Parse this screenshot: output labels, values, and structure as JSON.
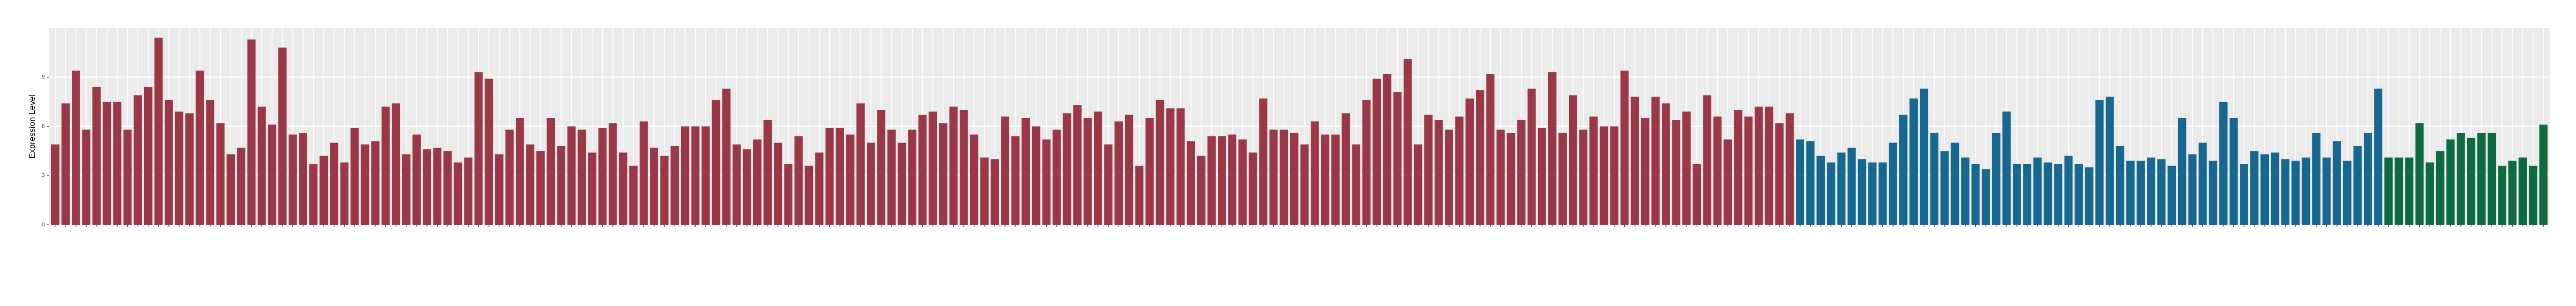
{
  "chart_data": {
    "type": "bar",
    "y_label": "Expression Level",
    "ylim": [
      0,
      12
    ],
    "yticks": [
      0,
      3,
      6,
      9
    ],
    "grid": true,
    "series": [
      {
        "color": "#9a3848",
        "values": [
          4.9,
          7.4,
          9.4,
          5.8,
          8.4,
          7.5,
          7.5,
          5.8,
          7.9,
          8.4,
          11.4,
          7.6,
          6.9,
          6.8,
          9.4,
          7.6,
          6.2,
          4.3,
          4.7,
          11.3,
          7.2,
          6.1,
          10.8,
          5.5,
          5.6,
          3.7,
          4.2,
          5.0,
          3.8,
          5.9,
          4.9,
          5.1,
          7.2,
          7.4,
          4.3,
          5.5,
          4.6,
          4.7,
          4.5,
          3.8,
          4.1,
          9.3,
          8.9,
          4.3,
          5.8,
          6.5,
          4.9,
          4.5,
          6.5,
          4.8,
          6.0,
          5.8,
          4.4,
          5.9,
          6.2,
          4.4,
          3.6,
          6.3,
          4.7,
          4.2,
          4.8,
          6.0,
          6.0,
          6.0,
          7.6,
          8.3,
          4.9,
          4.6,
          5.2,
          6.4,
          5.0,
          3.7,
          5.4,
          3.6,
          4.4,
          5.9,
          5.9,
          5.5,
          7.4,
          5.0,
          7.0,
          5.8,
          5.0,
          5.8,
          6.7,
          6.9,
          6.2,
          7.2,
          7.0,
          5.5,
          4.1,
          4.0,
          6.6,
          5.4,
          6.5,
          6.0,
          5.2,
          5.8,
          6.8,
          7.3,
          6.5,
          6.9,
          4.9,
          6.3,
          6.7,
          3.6,
          6.5,
          7.6,
          7.1,
          7.1,
          5.1,
          4.2,
          5.4,
          5.4,
          5.5,
          5.2,
          4.4,
          7.7,
          5.8,
          5.8,
          5.6,
          4.9,
          6.3,
          5.5,
          5.5,
          6.8,
          4.9,
          7.6,
          8.9,
          9.2,
          8.1,
          10.1,
          4.9,
          6.7,
          6.4,
          5.8,
          6.6,
          7.7,
          8.2,
          9.2,
          5.8,
          5.6,
          6.4,
          8.3,
          5.9,
          9.3,
          5.6,
          7.9,
          5.8,
          6.6,
          6.0,
          6.0,
          9.4,
          7.8,
          6.5,
          7.8,
          7.4,
          6.4,
          6.9,
          3.7,
          7.9,
          6.6,
          5.2,
          7.0,
          6.6,
          7.2,
          7.2,
          6.2,
          6.8
        ]
      },
      {
        "color": "#176891",
        "values": [
          5.2,
          5.1,
          4.2,
          3.8,
          4.4,
          4.7,
          4.0,
          3.8,
          3.8,
          5.0,
          6.7,
          7.7,
          8.3,
          5.6,
          4.5,
          5.0,
          4.1,
          3.7,
          3.4,
          5.6,
          6.9,
          3.7,
          3.7,
          4.1,
          3.8,
          3.7,
          4.2,
          3.7,
          3.5,
          7.6,
          7.8,
          4.8,
          3.9,
          3.9,
          4.1,
          4.0,
          3.6,
          6.5,
          4.3,
          5.0,
          3.9,
          7.5,
          6.5,
          3.7,
          4.5,
          4.3,
          4.4,
          4.0,
          3.9,
          4.1,
          5.6,
          4.1,
          5.1,
          3.9,
          4.8,
          5.6,
          8.3
        ]
      },
      {
        "color": "#0e6b40",
        "values": [
          4.1,
          4.1,
          4.1,
          6.2,
          3.8,
          4.5,
          5.2,
          5.6,
          5.3,
          5.6,
          5.6,
          3.6,
          3.9,
          4.1,
          3.6,
          6.1
        ]
      }
    ]
  }
}
